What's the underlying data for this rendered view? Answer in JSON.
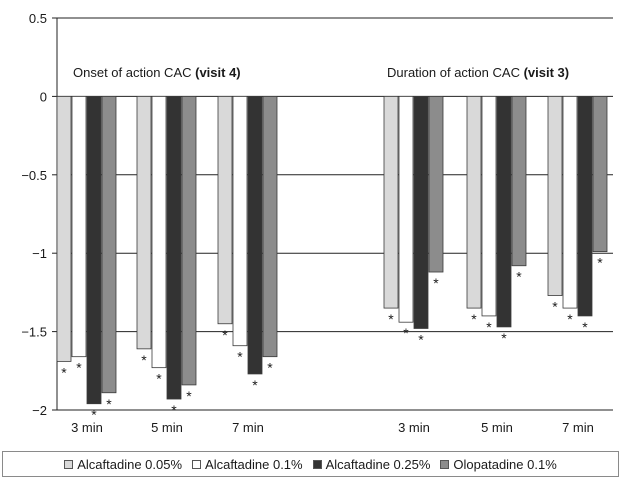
{
  "chart_data": {
    "type": "bar",
    "ylim": [
      -2,
      0.5
    ],
    "yticks": [
      "0.5",
      "0",
      "−0.5",
      "−1",
      "−1.5",
      "−2"
    ],
    "ytick_values": [
      0.5,
      0,
      -0.5,
      -1,
      -1.5,
      -2
    ],
    "grid": "horizontal",
    "legend_position": "bottom",
    "colors": [
      "#d9d9d9",
      "#ffffff",
      "#333333",
      "#8c8c8c"
    ],
    "groups": [
      {
        "title": "Onset of action CAC ",
        "title_bold": "(visit 4)",
        "categories": [
          "3 min",
          "5 min",
          "7 min"
        ]
      },
      {
        "title": "Duration of action CAC ",
        "title_bold": "(visit 3)",
        "categories": [
          "3 min",
          "5 min",
          "7 min"
        ]
      }
    ],
    "series": [
      {
        "name": "Alcaftadine 0.05%",
        "values": [
          -1.69,
          -1.61,
          -1.45,
          -1.35,
          -1.35,
          -1.27
        ]
      },
      {
        "name": "Alcaftadine 0.1%",
        "values": [
          -1.66,
          -1.73,
          -1.59,
          -1.44,
          -1.4,
          -1.35
        ]
      },
      {
        "name": "Alcaftadine 0.25%",
        "values": [
          -1.96,
          -1.93,
          -1.77,
          -1.48,
          -1.47,
          -1.4
        ]
      },
      {
        "name": "Olopatadine 0.1%",
        "values": [
          -1.89,
          -1.84,
          -1.66,
          -1.12,
          -1.08,
          -0.99
        ]
      }
    ],
    "annotation_symbol": "*",
    "significant": [
      [
        true,
        true,
        true,
        true,
        true,
        true
      ],
      [
        true,
        true,
        true,
        true,
        true,
        true
      ],
      [
        true,
        true,
        true,
        true,
        true,
        true
      ],
      [
        true,
        true,
        true,
        true,
        true,
        true
      ]
    ]
  }
}
